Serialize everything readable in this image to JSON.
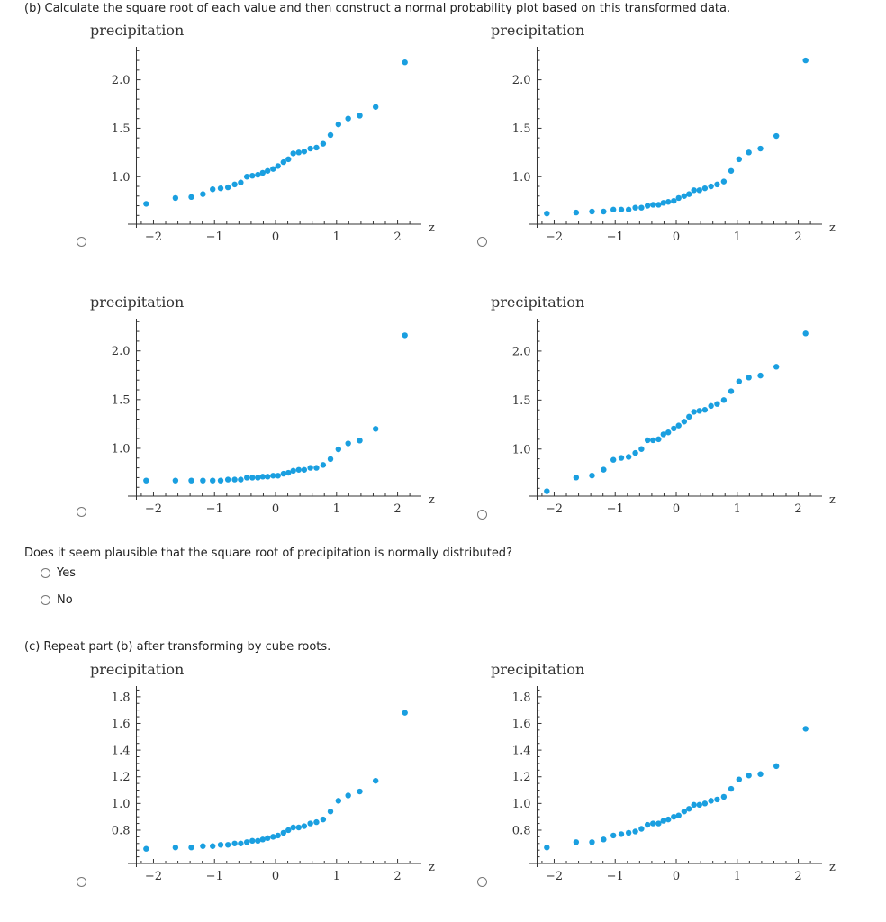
{
  "part_b": {
    "instruction": "(b) Calculate the square root of each value and then construct a normal probability plot based on this transformed data.",
    "question": "Does it seem plausible that the square root of precipitation is normally distributed?",
    "options": [
      "Yes",
      "No"
    ]
  },
  "part_c": {
    "instruction": "(c) Repeat part (b) after transforming by cube roots."
  },
  "colors": {
    "points": "#1a9fe0",
    "axis": "#333333"
  },
  "chart_data": [
    {
      "type": "scatter",
      "group": "b",
      "ylabel": "precipitation",
      "xlabel": "z",
      "xlim": [
        -2.42,
        2.39
      ],
      "ylim": [
        0.51,
        2.34
      ],
      "xticks": [
        -2,
        -1,
        0,
        1,
        2
      ],
      "xtick_labels": [
        "−2",
        "−1",
        "0",
        "1",
        "2"
      ],
      "yticks": [
        1.0,
        1.5,
        2.0
      ],
      "ytick_labels": [
        "1.0",
        "1.5",
        "2.0"
      ],
      "yminor": 0.1,
      "x": [
        -2.12,
        -1.64,
        -1.38,
        -1.19,
        -1.03,
        -0.9,
        -0.78,
        -0.67,
        -0.57,
        -0.47,
        -0.38,
        -0.29,
        -0.21,
        -0.13,
        -0.04,
        0.04,
        0.13,
        0.21,
        0.29,
        0.38,
        0.47,
        0.57,
        0.67,
        0.78,
        0.9,
        1.03,
        1.19,
        1.38,
        1.64,
        2.12
      ],
      "y": [
        0.72,
        0.78,
        0.79,
        0.82,
        0.87,
        0.88,
        0.89,
        0.92,
        0.94,
        1.0,
        1.01,
        1.02,
        1.04,
        1.06,
        1.08,
        1.11,
        1.15,
        1.18,
        1.24,
        1.25,
        1.26,
        1.29,
        1.3,
        1.34,
        1.43,
        1.54,
        1.6,
        1.63,
        1.72,
        2.18
      ]
    },
    {
      "type": "scatter",
      "group": "b",
      "ylabel": "precipitation",
      "xlabel": "z",
      "xlim": [
        -2.42,
        2.39
      ],
      "ylim": [
        0.51,
        2.34
      ],
      "xticks": [
        -2,
        -1,
        0,
        1,
        2
      ],
      "xtick_labels": [
        "−2",
        "−1",
        "0",
        "1",
        "2"
      ],
      "yticks": [
        1.0,
        1.5,
        2.0
      ],
      "ytick_labels": [
        "1.0",
        "1.5",
        "2.0"
      ],
      "yminor": 0.1,
      "x": [
        -2.12,
        -1.64,
        -1.38,
        -1.19,
        -1.03,
        -0.9,
        -0.78,
        -0.67,
        -0.57,
        -0.47,
        -0.38,
        -0.29,
        -0.21,
        -0.13,
        -0.04,
        0.04,
        0.13,
        0.21,
        0.29,
        0.38,
        0.47,
        0.57,
        0.67,
        0.78,
        0.9,
        1.03,
        1.19,
        1.38,
        1.64,
        2.12
      ],
      "y": [
        0.62,
        0.63,
        0.64,
        0.64,
        0.66,
        0.66,
        0.66,
        0.68,
        0.68,
        0.7,
        0.71,
        0.71,
        0.73,
        0.74,
        0.75,
        0.78,
        0.8,
        0.82,
        0.86,
        0.86,
        0.88,
        0.9,
        0.92,
        0.95,
        1.06,
        1.18,
        1.25,
        1.29,
        1.42,
        2.2
      ]
    },
    {
      "type": "scatter",
      "group": "b",
      "ylabel": "precipitation",
      "xlabel": "z",
      "xlim": [
        -2.42,
        2.39
      ],
      "ylim": [
        0.51,
        2.33
      ],
      "xticks": [
        -2,
        -1,
        0,
        1,
        2
      ],
      "xtick_labels": [
        "−2",
        "−1",
        "0",
        "1",
        "2"
      ],
      "yticks": [
        1.0,
        1.5,
        2.0
      ],
      "ytick_labels": [
        "1.0",
        "1.5",
        "2.0"
      ],
      "yminor": 0.1,
      "x": [
        -2.12,
        -1.64,
        -1.38,
        -1.19,
        -1.03,
        -0.9,
        -0.78,
        -0.67,
        -0.57,
        -0.47,
        -0.38,
        -0.29,
        -0.21,
        -0.13,
        -0.04,
        0.04,
        0.13,
        0.21,
        0.29,
        0.38,
        0.47,
        0.57,
        0.67,
        0.78,
        0.9,
        1.03,
        1.19,
        1.38,
        1.64,
        2.12
      ],
      "y": [
        0.67,
        0.67,
        0.67,
        0.67,
        0.67,
        0.67,
        0.68,
        0.68,
        0.68,
        0.7,
        0.7,
        0.7,
        0.71,
        0.71,
        0.72,
        0.72,
        0.74,
        0.75,
        0.77,
        0.78,
        0.78,
        0.8,
        0.8,
        0.83,
        0.89,
        0.99,
        1.05,
        1.08,
        1.2,
        2.16
      ]
    },
    {
      "type": "scatter",
      "group": "b",
      "ylabel": "precipitation",
      "xlabel": "z",
      "xlim": [
        -2.42,
        2.39
      ],
      "ylim": [
        0.52,
        2.33
      ],
      "xticks": [
        -2,
        -1,
        0,
        1,
        2
      ],
      "xtick_labels": [
        "−2",
        "−1",
        "0",
        "1",
        "2"
      ],
      "yticks": [
        1.0,
        1.5,
        2.0
      ],
      "ytick_labels": [
        "1.0",
        "1.5",
        "2.0"
      ],
      "yminor": 0.1,
      "x": [
        -2.12,
        -1.64,
        -1.38,
        -1.19,
        -1.03,
        -0.9,
        -0.78,
        -0.67,
        -0.57,
        -0.47,
        -0.38,
        -0.29,
        -0.21,
        -0.13,
        -0.04,
        0.04,
        0.13,
        0.21,
        0.29,
        0.38,
        0.47,
        0.57,
        0.67,
        0.78,
        0.9,
        1.03,
        1.19,
        1.38,
        1.64,
        2.12
      ],
      "y": [
        0.57,
        0.71,
        0.73,
        0.79,
        0.89,
        0.91,
        0.92,
        0.96,
        1.0,
        1.09,
        1.09,
        1.1,
        1.15,
        1.17,
        1.21,
        1.24,
        1.28,
        1.33,
        1.38,
        1.39,
        1.4,
        1.44,
        1.46,
        1.5,
        1.59,
        1.69,
        1.73,
        1.75,
        1.84,
        2.18
      ]
    },
    {
      "type": "scatter",
      "group": "c",
      "ylabel": "precipitation",
      "xlabel": "z",
      "xlim": [
        -2.42,
        2.39
      ],
      "ylim": [
        0.55,
        1.88
      ],
      "xticks": [
        -2,
        -1,
        0,
        1,
        2
      ],
      "xtick_labels": [
        "−2",
        "−1",
        "0",
        "1",
        "2"
      ],
      "yticks": [
        0.8,
        1.0,
        1.2,
        1.4,
        1.6,
        1.8
      ],
      "ytick_labels": [
        "0.8",
        "1.0",
        "1.2",
        "1.4",
        "1.6",
        "1.8"
      ],
      "yminor": 0.05,
      "x": [
        -2.12,
        -1.64,
        -1.38,
        -1.19,
        -1.03,
        -0.9,
        -0.78,
        -0.67,
        -0.57,
        -0.47,
        -0.38,
        -0.29,
        -0.21,
        -0.13,
        -0.04,
        0.04,
        0.13,
        0.21,
        0.29,
        0.38,
        0.47,
        0.57,
        0.67,
        0.78,
        0.9,
        1.03,
        1.19,
        1.38,
        1.64,
        2.12
      ],
      "y": [
        0.66,
        0.67,
        0.67,
        0.68,
        0.68,
        0.69,
        0.69,
        0.7,
        0.7,
        0.71,
        0.72,
        0.72,
        0.73,
        0.74,
        0.75,
        0.76,
        0.78,
        0.8,
        0.82,
        0.82,
        0.83,
        0.85,
        0.86,
        0.88,
        0.94,
        1.02,
        1.06,
        1.09,
        1.17,
        1.68
      ]
    },
    {
      "type": "scatter",
      "group": "c",
      "ylabel": "precipitation",
      "xlabel": "z",
      "xlim": [
        -2.42,
        2.39
      ],
      "ylim": [
        0.55,
        1.88
      ],
      "xticks": [
        -2,
        -1,
        0,
        1,
        2
      ],
      "xtick_labels": [
        "−2",
        "−1",
        "0",
        "1",
        "2"
      ],
      "yticks": [
        0.8,
        1.0,
        1.2,
        1.4,
        1.6,
        1.8
      ],
      "ytick_labels": [
        "0.8",
        "1.0",
        "1.2",
        "1.4",
        "1.6",
        "1.8"
      ],
      "yminor": 0.05,
      "x": [
        -2.12,
        -1.64,
        -1.38,
        -1.19,
        -1.03,
        -0.9,
        -0.78,
        -0.67,
        -0.57,
        -0.47,
        -0.38,
        -0.29,
        -0.21,
        -0.13,
        -0.04,
        0.04,
        0.13,
        0.21,
        0.29,
        0.38,
        0.47,
        0.57,
        0.67,
        0.78,
        0.9,
        1.03,
        1.19,
        1.38,
        1.64,
        2.12
      ],
      "y": [
        0.67,
        0.71,
        0.71,
        0.73,
        0.76,
        0.77,
        0.78,
        0.79,
        0.81,
        0.84,
        0.85,
        0.85,
        0.87,
        0.88,
        0.9,
        0.91,
        0.94,
        0.96,
        0.99,
        0.99,
        1.0,
        1.02,
        1.03,
        1.05,
        1.11,
        1.18,
        1.21,
        1.22,
        1.28,
        1.56
      ]
    }
  ]
}
